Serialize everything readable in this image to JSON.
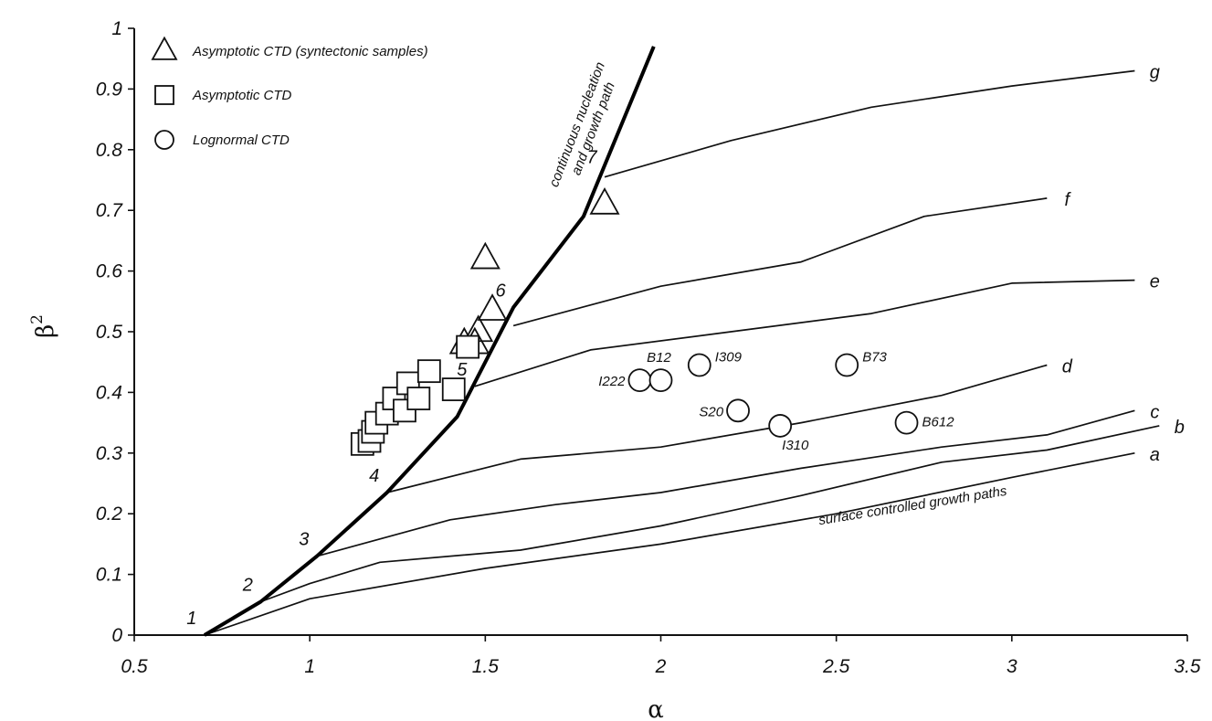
{
  "chart_data": {
    "type": "scatter",
    "xlabel": "α",
    "ylabel": "β",
    "ylabel_sup": "2",
    "xlim": [
      0.5,
      3.5
    ],
    "ylim": [
      0,
      1
    ],
    "xticks": [
      "0.5",
      "1",
      "1.5",
      "2",
      "2.5",
      "3",
      "3.5"
    ],
    "yticks": [
      "0",
      "0.1",
      "0.2",
      "0.3",
      "0.4",
      "0.5",
      "0.6",
      "0.7",
      "0.8",
      "0.9",
      "1"
    ],
    "grid": false,
    "legend": {
      "placement": "top-left",
      "entries": [
        {
          "marker": "triangle",
          "label": "Asymptotic CTD (syntectonic samples)"
        },
        {
          "marker": "square",
          "label": "Asymptotic CTD"
        },
        {
          "marker": "circle",
          "label": "Lognormal CTD"
        }
      ]
    },
    "main_path": {
      "annotation": [
        "continuous nucleation",
        "and growth path"
      ],
      "points": [
        [
          0.7,
          0.0
        ],
        [
          0.86,
          0.055
        ],
        [
          1.02,
          0.13
        ],
        [
          1.22,
          0.235
        ],
        [
          1.42,
          0.36
        ],
        [
          1.58,
          0.54
        ],
        [
          1.78,
          0.69
        ],
        [
          1.98,
          0.97
        ]
      ],
      "markers": [
        {
          "label": "1",
          "x": 0.7,
          "y": 0.0
        },
        {
          "label": "2",
          "x": 0.86,
          "y": 0.055
        },
        {
          "label": "3",
          "x": 1.02,
          "y": 0.13
        },
        {
          "label": "4",
          "x": 1.22,
          "y": 0.235
        },
        {
          "label": "5",
          "x": 1.47,
          "y": 0.41
        },
        {
          "label": "6",
          "x": 1.58,
          "y": 0.54
        },
        {
          "label": "7",
          "x": 1.84,
          "y": 0.76
        }
      ]
    },
    "surface_paths_annotation": "surface controlled growth paths",
    "surface_paths": [
      {
        "label": "a",
        "points": [
          [
            0.7,
            0.0
          ],
          [
            1.0,
            0.06
          ],
          [
            1.5,
            0.11
          ],
          [
            2.0,
            0.15
          ],
          [
            2.5,
            0.2
          ],
          [
            3.0,
            0.26
          ],
          [
            3.35,
            0.3
          ]
        ]
      },
      {
        "label": "b",
        "points": [
          [
            0.86,
            0.055
          ],
          [
            1.0,
            0.085
          ],
          [
            1.2,
            0.12
          ],
          [
            1.6,
            0.14
          ],
          [
            2.0,
            0.18
          ],
          [
            2.4,
            0.23
          ],
          [
            2.8,
            0.285
          ],
          [
            3.1,
            0.305
          ],
          [
            3.42,
            0.345
          ]
        ]
      },
      {
        "label": "c",
        "points": [
          [
            1.02,
            0.13
          ],
          [
            1.4,
            0.19
          ],
          [
            1.7,
            0.215
          ],
          [
            2.0,
            0.235
          ],
          [
            2.4,
            0.275
          ],
          [
            2.8,
            0.31
          ],
          [
            3.1,
            0.33
          ],
          [
            3.35,
            0.37
          ]
        ]
      },
      {
        "label": "d",
        "points": [
          [
            1.22,
            0.235
          ],
          [
            1.6,
            0.29
          ],
          [
            2.0,
            0.31
          ],
          [
            2.4,
            0.35
          ],
          [
            2.8,
            0.395
          ],
          [
            3.1,
            0.445
          ]
        ]
      },
      {
        "label": "e",
        "points": [
          [
            1.47,
            0.41
          ],
          [
            1.8,
            0.47
          ],
          [
            2.2,
            0.5
          ],
          [
            2.6,
            0.53
          ],
          [
            3.0,
            0.58
          ],
          [
            3.35,
            0.585
          ]
        ]
      },
      {
        "label": "f",
        "points": [
          [
            1.58,
            0.51
          ],
          [
            2.0,
            0.575
          ],
          [
            2.4,
            0.615
          ],
          [
            2.75,
            0.69
          ],
          [
            3.1,
            0.72
          ]
        ]
      },
      {
        "label": "g",
        "points": [
          [
            1.84,
            0.755
          ],
          [
            2.2,
            0.815
          ],
          [
            2.6,
            0.87
          ],
          [
            3.0,
            0.905
          ],
          [
            3.35,
            0.93
          ]
        ]
      }
    ],
    "series": [
      {
        "marker": "triangle",
        "points": [
          [
            1.84,
            0.71
          ],
          [
            1.5,
            0.62
          ],
          [
            1.52,
            0.535
          ],
          [
            1.48,
            0.5
          ],
          [
            1.44,
            0.48
          ],
          [
            1.47,
            0.48
          ]
        ]
      },
      {
        "marker": "square",
        "points": [
          [
            1.15,
            0.315
          ],
          [
            1.17,
            0.32
          ],
          [
            1.18,
            0.335
          ],
          [
            1.19,
            0.35
          ],
          [
            1.22,
            0.365
          ],
          [
            1.24,
            0.39
          ],
          [
            1.27,
            0.37
          ],
          [
            1.28,
            0.415
          ],
          [
            1.31,
            0.39
          ],
          [
            1.34,
            0.435
          ],
          [
            1.41,
            0.405
          ],
          [
            1.45,
            0.475
          ]
        ]
      },
      {
        "marker": "circle",
        "points": [
          {
            "name": "I222",
            "x": 1.94,
            "y": 0.42
          },
          {
            "name": "B12",
            "x": 2.0,
            "y": 0.42
          },
          {
            "name": "I309",
            "x": 2.11,
            "y": 0.445
          },
          {
            "name": "S20",
            "x": 2.22,
            "y": 0.37
          },
          {
            "name": "I310",
            "x": 2.34,
            "y": 0.345
          },
          {
            "name": "B73",
            "x": 2.53,
            "y": 0.445
          },
          {
            "name": "B612",
            "x": 2.7,
            "y": 0.35
          }
        ]
      }
    ]
  }
}
